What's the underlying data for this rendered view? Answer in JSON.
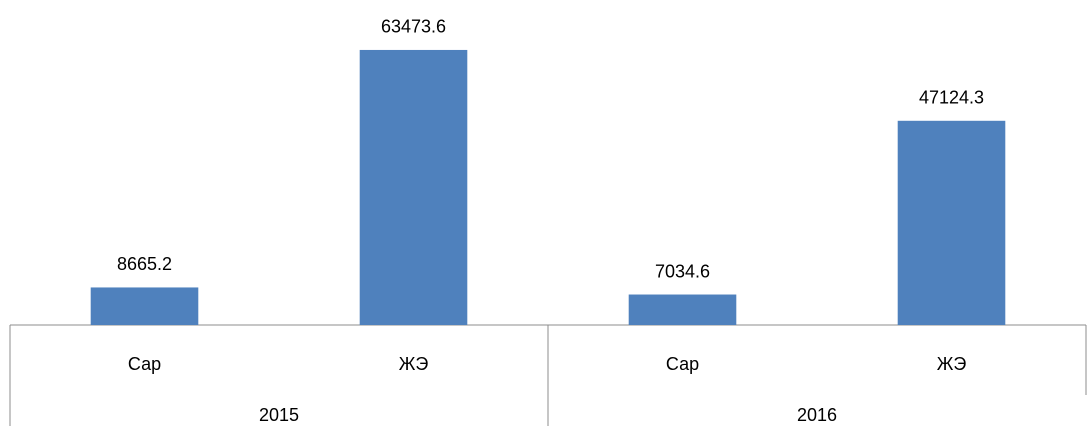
{
  "chart_data": {
    "type": "bar",
    "color": "#4f81bd",
    "ylim": [
      0,
      75000
    ],
    "groups": [
      {
        "label": "2015",
        "categories": [
          "Сар",
          "ЖЭ"
        ],
        "values": [
          8665.2,
          63473.6
        ]
      },
      {
        "label": "2016",
        "categories": [
          "Сар",
          "ЖЭ"
        ],
        "values": [
          7034.6,
          47124.3
        ]
      }
    ]
  }
}
